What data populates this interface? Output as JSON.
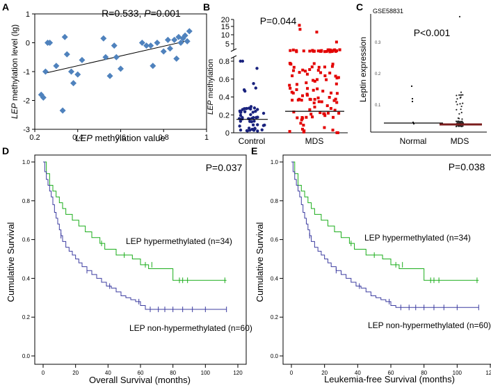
{
  "chart_data": [
    {
      "panel": "A",
      "type": "scatter",
      "title_parts": [
        "R=0.533, ",
        "P",
        "=0.001"
      ],
      "xlabel_parts": [
        "LEP",
        " methylation value"
      ],
      "ylabel_parts": [
        "LEP",
        " methylation level (lg)"
      ],
      "xlim": [
        0.2,
        1.0
      ],
      "ylim": [
        -3,
        1
      ],
      "xticks": [
        0.2,
        0.4,
        0.6,
        0.8,
        1
      ],
      "yticks": [
        1,
        0,
        -1,
        -2,
        -3
      ],
      "points": [
        [
          0.23,
          -1.8
        ],
        [
          0.24,
          -1.9
        ],
        [
          0.25,
          -1.0
        ],
        [
          0.26,
          0.0
        ],
        [
          0.27,
          0.0
        ],
        [
          0.3,
          -0.8
        ],
        [
          0.33,
          -2.35
        ],
        [
          0.34,
          0.2
        ],
        [
          0.35,
          -0.4
        ],
        [
          0.37,
          -1.0
        ],
        [
          0.38,
          -1.4
        ],
        [
          0.4,
          -1.1
        ],
        [
          0.42,
          -0.6
        ],
        [
          0.52,
          0.15
        ],
        [
          0.53,
          -0.5
        ],
        [
          0.55,
          -1.15
        ],
        [
          0.57,
          -0.1
        ],
        [
          0.58,
          -0.5
        ],
        [
          0.6,
          -0.9
        ],
        [
          0.7,
          0.0
        ],
        [
          0.72,
          -0.1
        ],
        [
          0.74,
          -0.1
        ],
        [
          0.75,
          -0.8
        ],
        [
          0.77,
          0.0
        ],
        [
          0.8,
          -0.3
        ],
        [
          0.82,
          0.1
        ],
        [
          0.83,
          -0.2
        ],
        [
          0.85,
          0.1
        ],
        [
          0.86,
          -0.55
        ],
        [
          0.87,
          0.2
        ],
        [
          0.88,
          0.0
        ],
        [
          0.89,
          0.15
        ],
        [
          0.9,
          0.25
        ],
        [
          0.91,
          0.05
        ],
        [
          0.92,
          0.4
        ]
      ],
      "fit_line": [
        [
          0.25,
          -1.05
        ],
        [
          0.9,
          0.05
        ]
      ],
      "colors": {
        "points": "#4f82bd",
        "line": "#000000"
      }
    },
    {
      "panel": "B",
      "type": "scatter",
      "annotation": "P=0.044",
      "ylabel_parts": [
        "LEP",
        " methylation"
      ],
      "categories": [
        "Control",
        "MDS"
      ],
      "yticks_lower": [
        0,
        0.2,
        0.4,
        0.6,
        0.8
      ],
      "yticks_upper": [
        5,
        10,
        15,
        20
      ],
      "medians": [
        0.15,
        0.24
      ],
      "colors": {
        "Control": "#1a237e",
        "MDS": "#e30000"
      }
    },
    {
      "panel": "C",
      "type": "scatter",
      "dataset": "GSE58831",
      "annotation": "P<0.001",
      "ylabel": "Leptin expression",
      "categories": [
        "Normal",
        "MDS"
      ],
      "ytick_labels": [
        "0.3",
        "0.2",
        "0.1"
      ],
      "colors": {
        "Normal": "#000000",
        "MDS": "#7b1d1d"
      }
    },
    {
      "panel": "D",
      "type": "line",
      "annotation": "P=0.037",
      "xlabel": "Overall Survival (months)",
      "ylabel": "Cumulative Survival",
      "xlim": [
        0,
        120
      ],
      "ylim": [
        0,
        1
      ],
      "xticks": [
        0,
        20,
        40,
        60,
        80,
        100,
        120
      ],
      "yticks": [
        0,
        0.2,
        0.4,
        0.6,
        0.8,
        1
      ],
      "series": [
        {
          "name": "LEP hypermethylated (n=34)",
          "color": "#1aad1a",
          "x": [
            0,
            2,
            4,
            6,
            8,
            10,
            12,
            14,
            18,
            22,
            26,
            30,
            35,
            38,
            45,
            55,
            60,
            65,
            80,
            95,
            113
          ],
          "y": [
            1,
            0.94,
            0.88,
            0.85,
            0.82,
            0.79,
            0.76,
            0.73,
            0.7,
            0.67,
            0.64,
            0.61,
            0.58,
            0.55,
            0.52,
            0.5,
            0.47,
            0.45,
            0.39,
            0.39,
            0.39
          ],
          "censors": [
            [
              36,
              0.58
            ],
            [
              50,
              0.52
            ],
            [
              63,
              0.47
            ],
            [
              67,
              0.47
            ],
            [
              84,
              0.39
            ],
            [
              86,
              0.39
            ],
            [
              89,
              0.39
            ],
            [
              112,
              0.39
            ]
          ]
        },
        {
          "name": "LEP non-hypermethylated (n=60)",
          "color": "#3c3ca0",
          "x": [
            0,
            1,
            2,
            3,
            4,
            5,
            6,
            7,
            8,
            9,
            10,
            11,
            12,
            14,
            16,
            18,
            20,
            22,
            24,
            27,
            30,
            33,
            36,
            39,
            42,
            45,
            48,
            51,
            54,
            57,
            60,
            63,
            70,
            80,
            90,
            100,
            113
          ],
          "y": [
            1,
            0.95,
            0.91,
            0.88,
            0.85,
            0.82,
            0.78,
            0.74,
            0.71,
            0.68,
            0.65,
            0.62,
            0.59,
            0.56,
            0.54,
            0.52,
            0.5,
            0.48,
            0.46,
            0.44,
            0.42,
            0.4,
            0.38,
            0.36,
            0.35,
            0.33,
            0.31,
            0.3,
            0.29,
            0.28,
            0.26,
            0.24,
            0.24,
            0.24,
            0.24,
            0.24,
            0.24
          ],
          "censors": [
            [
              11,
              0.62
            ],
            [
              27,
              0.44
            ],
            [
              41,
              0.36
            ],
            [
              59,
              0.28
            ],
            [
              66,
              0.24
            ],
            [
              71,
              0.24
            ],
            [
              75,
              0.24
            ],
            [
              80,
              0.24
            ],
            [
              86,
              0.24
            ],
            [
              92,
              0.24
            ],
            [
              100,
              0.24
            ],
            [
              113,
              0.24
            ]
          ]
        }
      ]
    },
    {
      "panel": "E",
      "type": "line",
      "annotation": "P=0.038",
      "xlabel": "Leukemia-free Survival (months)",
      "ylabel": "Cumulative Survival",
      "xlim": [
        0,
        120
      ],
      "ylim": [
        0,
        1
      ],
      "xticks": [
        0,
        20,
        40,
        60,
        80,
        100,
        120
      ],
      "yticks": [
        0,
        0.2,
        0.4,
        0.6,
        0.8,
        1
      ],
      "series": [
        {
          "name": "LEP hypermethylated (n=34)",
          "color": "#1aad1a",
          "x": [
            0,
            2,
            4,
            6,
            8,
            10,
            12,
            14,
            18,
            22,
            26,
            30,
            35,
            38,
            45,
            55,
            60,
            65,
            80,
            95,
            113
          ],
          "y": [
            1,
            0.94,
            0.88,
            0.85,
            0.82,
            0.79,
            0.76,
            0.73,
            0.7,
            0.67,
            0.64,
            0.61,
            0.58,
            0.55,
            0.52,
            0.5,
            0.47,
            0.45,
            0.39,
            0.39,
            0.39
          ],
          "censors": [
            [
              36,
              0.58
            ],
            [
              50,
              0.52
            ],
            [
              63,
              0.47
            ],
            [
              67,
              0.47
            ],
            [
              84,
              0.39
            ],
            [
              86,
              0.39
            ],
            [
              89,
              0.39
            ],
            [
              112,
              0.39
            ]
          ]
        },
        {
          "name": "LEP non-hypermethylated (n=60)",
          "color": "#3c3ca0",
          "x": [
            0,
            1,
            2,
            3,
            4,
            5,
            6,
            7,
            8,
            9,
            10,
            11,
            12,
            14,
            16,
            18,
            20,
            22,
            24,
            27,
            30,
            33,
            36,
            39,
            42,
            45,
            48,
            51,
            54,
            57,
            60,
            63,
            70,
            80,
            90,
            100,
            113
          ],
          "y": [
            1,
            0.95,
            0.91,
            0.88,
            0.85,
            0.82,
            0.78,
            0.74,
            0.71,
            0.68,
            0.65,
            0.62,
            0.59,
            0.56,
            0.54,
            0.52,
            0.5,
            0.48,
            0.46,
            0.44,
            0.42,
            0.4,
            0.38,
            0.36,
            0.35,
            0.33,
            0.31,
            0.3,
            0.29,
            0.28,
            0.26,
            0.25,
            0.25,
            0.25,
            0.25,
            0.25,
            0.25
          ],
          "censors": [
            [
              11,
              0.62
            ],
            [
              27,
              0.44
            ],
            [
              41,
              0.36
            ],
            [
              59,
              0.28
            ],
            [
              66,
              0.25
            ],
            [
              71,
              0.25
            ],
            [
              75,
              0.25
            ],
            [
              80,
              0.25
            ],
            [
              86,
              0.25
            ],
            [
              92,
              0.25
            ],
            [
              100,
              0.25
            ],
            [
              113,
              0.25
            ]
          ]
        }
      ]
    }
  ]
}
